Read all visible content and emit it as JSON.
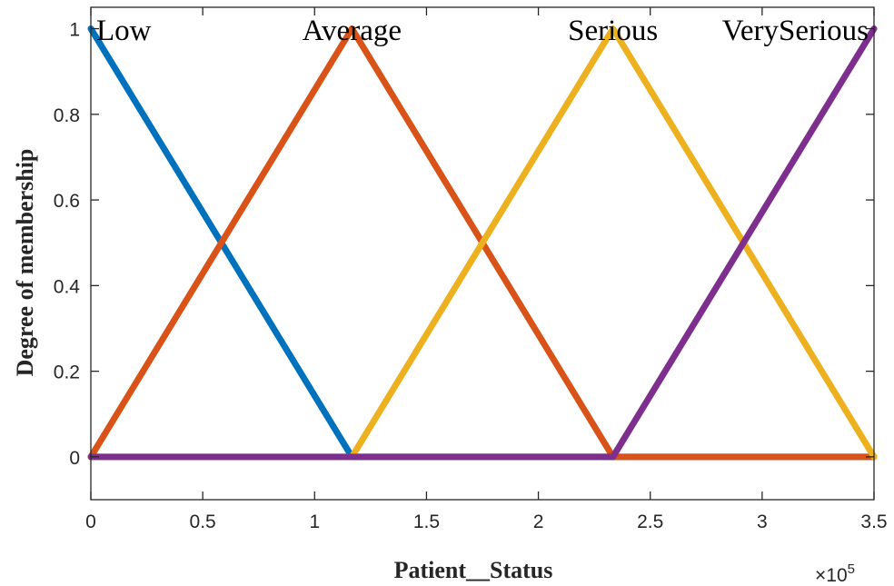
{
  "chart_data": {
    "type": "line",
    "xlabel": "Patient__Status",
    "ylabel": "Degree of membership",
    "x_multiplier_label": "×10",
    "x_multiplier_exponent": "5",
    "xlim": [
      0,
      3.5
    ],
    "ylim": [
      -0.1,
      1.05
    ],
    "x_ticks": [
      0,
      0.5,
      1,
      1.5,
      2,
      2.5,
      3,
      3.5
    ],
    "x_tick_labels": [
      "0",
      "0.5",
      "1",
      "1.5",
      "2",
      "2.5",
      "3",
      "3.5"
    ],
    "y_ticks": [
      0,
      0.2,
      0.4,
      0.6,
      0.8,
      1
    ],
    "y_tick_labels": [
      "0",
      "0.2",
      "0.4",
      "0.6",
      "0.8",
      "1"
    ],
    "grid": false,
    "series": [
      {
        "name": "Low",
        "color": "#0072BD",
        "x": [
          0,
          1.1667,
          3.5
        ],
        "y": [
          1,
          0,
          0
        ]
      },
      {
        "name": "Average",
        "color": "#D95319",
        "x": [
          0,
          1.1667,
          2.3333,
          3.5
        ],
        "y": [
          0,
          1,
          0,
          0
        ]
      },
      {
        "name": "Serious",
        "color": "#EDB120",
        "x": [
          0,
          1.1667,
          2.3333,
          3.5
        ],
        "y": [
          0,
          0,
          1,
          0
        ]
      },
      {
        "name": "VerySerious",
        "color": "#7E2F8E",
        "x": [
          0,
          2.3333,
          3.5
        ],
        "y": [
          0,
          0,
          1
        ]
      }
    ],
    "annotations": [
      {
        "text": "Low",
        "x": 0,
        "y": 1
      },
      {
        "text": "Average",
        "x": 1.1667,
        "y": 1
      },
      {
        "text": "Serious",
        "x": 2.3333,
        "y": 1
      },
      {
        "text": "VerySerious",
        "x": 3.5,
        "y": 1
      }
    ]
  }
}
